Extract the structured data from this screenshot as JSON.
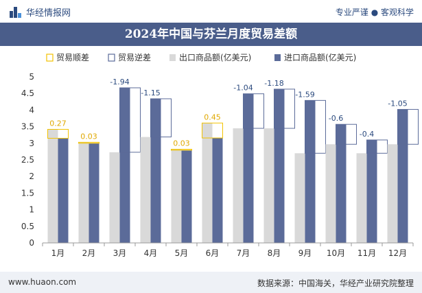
{
  "header": {
    "brand": "华经情报网",
    "tagline": "专业严谨 ● 客观科学"
  },
  "footer": {
    "url": "www.huaon.com",
    "source": "数据来源：中国海关，华经产业研究院整理"
  },
  "colors": {
    "export": "#d9d9d9",
    "import": "#5b6b99",
    "surplus_border": "#f2c200",
    "deficit_border": "#5b6b99",
    "surplus_label": "#e0a800",
    "deficit_label": "#2b4a7e",
    "title_bg": "#4a5d8a"
  },
  "chart_data": {
    "type": "bar",
    "title": "2024年中国与芬兰月度贸易差额",
    "categories": [
      "1月",
      "2月",
      "3月",
      "4月",
      "5月",
      "6月",
      "7月",
      "8月",
      "9月",
      "10月",
      "11月",
      "12月"
    ],
    "series": [
      {
        "name": "出口商品额(亿美元)",
        "values": [
          3.42,
          3.03,
          2.73,
          3.19,
          2.82,
          3.61,
          3.45,
          3.45,
          2.7,
          2.97,
          2.7,
          2.97
        ]
      },
      {
        "name": "进口商品额(亿美元)",
        "values": [
          3.15,
          3.0,
          4.67,
          4.34,
          2.79,
          3.16,
          4.49,
          4.63,
          4.29,
          3.57,
          3.1,
          4.02
        ]
      }
    ],
    "balance": {
      "surplus_name": "贸易顺差",
      "deficit_name": "贸易逆差",
      "values": [
        0.27,
        0.03,
        -1.94,
        -1.15,
        0.03,
        0.45,
        -1.04,
        -1.18,
        -1.59,
        -0.6,
        -0.4,
        -1.05
      ],
      "labels": [
        "0.27",
        "0.03",
        "-1.94",
        "-1.15",
        "0.03",
        "0.45",
        "-1.04",
        "-1.18",
        "-1.59",
        "-0.6",
        "-0.4",
        "-1.05"
      ]
    },
    "ylim": [
      0,
      5
    ],
    "yticks": [
      "0",
      "0.5",
      "1",
      "1.5",
      "2",
      "2.5",
      "3",
      "3.5",
      "4",
      "4.5",
      "5"
    ],
    "legend_position": "top",
    "grid": false
  }
}
